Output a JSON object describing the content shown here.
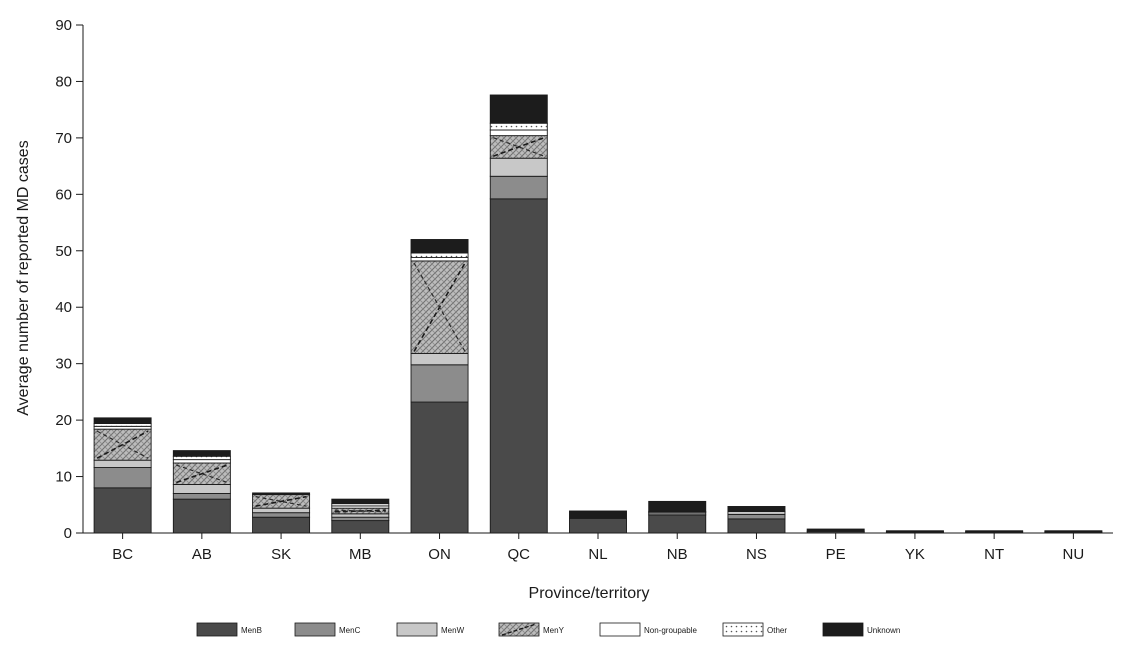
{
  "chart_data": {
    "type": "bar",
    "stacked": true,
    "xlabel": "Province/territory",
    "ylabel": "Average number of reported MD cases",
    "ylim": [
      0,
      90
    ],
    "yticks": [
      0,
      10,
      20,
      30,
      40,
      50,
      60,
      70,
      80,
      90
    ],
    "grid": false,
    "legend_position": "bottom",
    "categories": [
      "BC",
      "AB",
      "SK",
      "MB",
      "ON",
      "QC",
      "NL",
      "NB",
      "NS",
      "PE",
      "YK",
      "NT",
      "NU"
    ],
    "series": [
      {
        "name": "MenB",
        "color": "#4a4a4a",
        "pattern": "solid",
        "values": [
          8.0,
          6.0,
          2.8,
          2.2,
          23.2,
          59.2,
          2.6,
          3.2,
          2.5,
          0.3,
          0.2,
          0.2,
          0.2
        ]
      },
      {
        "name": "MenC",
        "color": "#8c8c8c",
        "pattern": "solid",
        "values": [
          3.6,
          1.0,
          0.8,
          0.6,
          6.6,
          4.0,
          0.0,
          0.4,
          0.8,
          0.0,
          0.0,
          0.0,
          0.0
        ]
      },
      {
        "name": "MenW",
        "color": "#c8c8c8",
        "pattern": "solid",
        "values": [
          1.3,
          1.6,
          0.8,
          0.6,
          2.0,
          3.2,
          0.0,
          0.2,
          0.5,
          0.0,
          0.0,
          0.0,
          0.0
        ]
      },
      {
        "name": "MenY",
        "color": "#b4b4b4",
        "pattern": "crosshatch",
        "values": [
          5.5,
          3.8,
          2.4,
          1.0,
          16.4,
          4.0,
          0.0,
          0.0,
          0.0,
          0.0,
          0.0,
          0.0,
          0.0
        ]
      },
      {
        "name": "Non-groupable",
        "color": "#ffffff",
        "pattern": "solid",
        "values": [
          0.5,
          0.6,
          0.0,
          0.4,
          0.6,
          1.0,
          0.0,
          0.0,
          0.0,
          0.0,
          0.0,
          0.0,
          0.0
        ]
      },
      {
        "name": "Other",
        "color": "#ffffff",
        "pattern": "dotted",
        "values": [
          0.5,
          0.6,
          0.0,
          0.4,
          0.8,
          1.2,
          0.0,
          0.0,
          0.0,
          0.0,
          0.0,
          0.0,
          0.0
        ]
      },
      {
        "name": "Unknown",
        "color": "#1c1c1c",
        "pattern": "solid",
        "values": [
          1.0,
          1.0,
          0.3,
          0.8,
          2.4,
          5.0,
          1.3,
          1.8,
          0.9,
          0.4,
          0.2,
          0.2,
          0.2
        ]
      }
    ]
  }
}
